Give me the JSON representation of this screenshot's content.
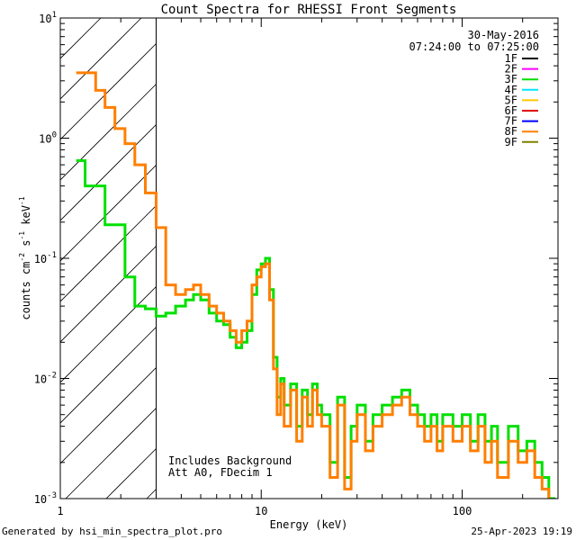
{
  "chart_data": {
    "type": "line",
    "title": "Count Spectra for RHESSI Front Segments",
    "xlabel": "Energy (keV)",
    "ylabel_parts": [
      "counts cm",
      "-2",
      " s",
      "-1",
      " keV",
      "-1"
    ],
    "x_scale": "log",
    "y_scale": "log",
    "xlim": [
      1,
      300
    ],
    "ylim": [
      0.001,
      10
    ],
    "x_ticks": [
      {
        "value": 1,
        "label": "1"
      },
      {
        "value": 10,
        "label": "10"
      },
      {
        "value": 100,
        "label": "100"
      }
    ],
    "y_ticks": [
      {
        "value": 0.001,
        "base": "10",
        "exp": "-3"
      },
      {
        "value": 0.01,
        "base": "10",
        "exp": "-2"
      },
      {
        "value": 0.1,
        "base": "10",
        "exp": "-1"
      },
      {
        "value": 1,
        "base": "10",
        "exp": "0"
      },
      {
        "value": 10,
        "base": "10",
        "exp": "1"
      }
    ],
    "date": "30-May-2016",
    "time_range": "07:24:00 to 07:25:00",
    "shaded_region": {
      "x_min": 1,
      "x_max": 3
    },
    "annotation_lines": [
      "Includes Background",
      "Att A0, FDecim 1"
    ],
    "legend": [
      {
        "label": "1F",
        "color": "#000000"
      },
      {
        "label": "2F",
        "color": "#ff00ff"
      },
      {
        "label": "3F",
        "color": "#00e000"
      },
      {
        "label": "4F",
        "color": "#00e5ff"
      },
      {
        "label": "5F",
        "color": "#ffc800"
      },
      {
        "label": "6F",
        "color": "#e00000"
      },
      {
        "label": "7F",
        "color": "#0000ff"
      },
      {
        "label": "8F",
        "color": "#ff7f00"
      },
      {
        "label": "9F",
        "color": "#808000"
      }
    ],
    "series": [
      {
        "name": "3F",
        "color": "#00e000",
        "points": [
          [
            1.2,
            0.65
          ],
          [
            1.33,
            0.4
          ],
          [
            1.5,
            0.4
          ],
          [
            1.67,
            0.19
          ],
          [
            1.87,
            0.19
          ],
          [
            2.1,
            0.07
          ],
          [
            2.35,
            0.04
          ],
          [
            2.65,
            0.038
          ],
          [
            3.0,
            0.033
          ],
          [
            3.35,
            0.035
          ],
          [
            3.75,
            0.04
          ],
          [
            4.2,
            0.045
          ],
          [
            4.6,
            0.05
          ],
          [
            5.0,
            0.045
          ],
          [
            5.5,
            0.035
          ],
          [
            6.0,
            0.03
          ],
          [
            6.5,
            0.028
          ],
          [
            7.0,
            0.022
          ],
          [
            7.5,
            0.018
          ],
          [
            8.0,
            0.02
          ],
          [
            8.5,
            0.025
          ],
          [
            9.0,
            0.05
          ],
          [
            9.5,
            0.08
          ],
          [
            10.0,
            0.09
          ],
          [
            10.5,
            0.1
          ],
          [
            11.0,
            0.055
          ],
          [
            11.5,
            0.015
          ],
          [
            12.0,
            0.007
          ],
          [
            12.5,
            0.01
          ],
          [
            13.0,
            0.006
          ],
          [
            14.0,
            0.009
          ],
          [
            15.0,
            0.004
          ],
          [
            16.0,
            0.008
          ],
          [
            17.0,
            0.005
          ],
          [
            18.0,
            0.009
          ],
          [
            19.0,
            0.006
          ],
          [
            20.0,
            0.005
          ],
          [
            22.0,
            0.002
          ],
          [
            24.0,
            0.007
          ],
          [
            26.0,
            0.0015
          ],
          [
            28.0,
            0.004
          ],
          [
            30.0,
            0.006
          ],
          [
            33.0,
            0.003
          ],
          [
            36.0,
            0.005
          ],
          [
            40.0,
            0.006
          ],
          [
            45.0,
            0.007
          ],
          [
            50.0,
            0.008
          ],
          [
            55.0,
            0.006
          ],
          [
            60.0,
            0.005
          ],
          [
            65.0,
            0.004
          ],
          [
            70.0,
            0.005
          ],
          [
            75.0,
            0.003
          ],
          [
            80.0,
            0.005
          ],
          [
            90.0,
            0.004
          ],
          [
            100.0,
            0.005
          ],
          [
            110.0,
            0.003
          ],
          [
            120.0,
            0.005
          ],
          [
            130.0,
            0.003
          ],
          [
            140.0,
            0.004
          ],
          [
            150.0,
            0.002
          ],
          [
            170.0,
            0.004
          ],
          [
            190.0,
            0.0025
          ],
          [
            210.0,
            0.003
          ],
          [
            230.0,
            0.002
          ],
          [
            250.0,
            0.0015
          ],
          [
            270.0,
            0.001
          ]
        ]
      },
      {
        "name": "8F",
        "color": "#ff7f00",
        "points": [
          [
            1.2,
            3.5
          ],
          [
            1.33,
            3.5
          ],
          [
            1.5,
            2.5
          ],
          [
            1.67,
            1.8
          ],
          [
            1.87,
            1.2
          ],
          [
            2.1,
            0.9
          ],
          [
            2.35,
            0.6
          ],
          [
            2.65,
            0.35
          ],
          [
            3.0,
            0.18
          ],
          [
            3.35,
            0.06
          ],
          [
            3.75,
            0.05
          ],
          [
            4.2,
            0.055
          ],
          [
            4.6,
            0.06
          ],
          [
            5.0,
            0.05
          ],
          [
            5.5,
            0.04
          ],
          [
            6.0,
            0.035
          ],
          [
            6.5,
            0.03
          ],
          [
            7.0,
            0.025
          ],
          [
            7.5,
            0.02
          ],
          [
            8.0,
            0.025
          ],
          [
            8.5,
            0.03
          ],
          [
            9.0,
            0.06
          ],
          [
            9.5,
            0.07
          ],
          [
            10.0,
            0.085
          ],
          [
            10.5,
            0.09
          ],
          [
            11.0,
            0.045
          ],
          [
            11.5,
            0.012
          ],
          [
            12.0,
            0.005
          ],
          [
            12.5,
            0.009
          ],
          [
            13.0,
            0.004
          ],
          [
            14.0,
            0.008
          ],
          [
            15.0,
            0.003
          ],
          [
            16.0,
            0.007
          ],
          [
            17.0,
            0.004
          ],
          [
            18.0,
            0.008
          ],
          [
            19.0,
            0.005
          ],
          [
            20.0,
            0.004
          ],
          [
            22.0,
            0.0015
          ],
          [
            24.0,
            0.006
          ],
          [
            26.0,
            0.0012
          ],
          [
            28.0,
            0.003
          ],
          [
            30.0,
            0.005
          ],
          [
            33.0,
            0.0025
          ],
          [
            36.0,
            0.004
          ],
          [
            40.0,
            0.005
          ],
          [
            45.0,
            0.006
          ],
          [
            50.0,
            0.007
          ],
          [
            55.0,
            0.005
          ],
          [
            60.0,
            0.004
          ],
          [
            65.0,
            0.003
          ],
          [
            70.0,
            0.004
          ],
          [
            75.0,
            0.0025
          ],
          [
            80.0,
            0.004
          ],
          [
            90.0,
            0.003
          ],
          [
            100.0,
            0.004
          ],
          [
            110.0,
            0.0025
          ],
          [
            120.0,
            0.004
          ],
          [
            130.0,
            0.002
          ],
          [
            140.0,
            0.003
          ],
          [
            150.0,
            0.0015
          ],
          [
            170.0,
            0.003
          ],
          [
            190.0,
            0.002
          ],
          [
            210.0,
            0.0025
          ],
          [
            230.0,
            0.0015
          ],
          [
            250.0,
            0.0012
          ],
          [
            270.0,
            0.0008
          ]
        ]
      }
    ]
  },
  "footer": {
    "generated_by": "Generated by hsi_min_spectra_plot.pro",
    "timestamp": "25-Apr-2023 19:19"
  }
}
